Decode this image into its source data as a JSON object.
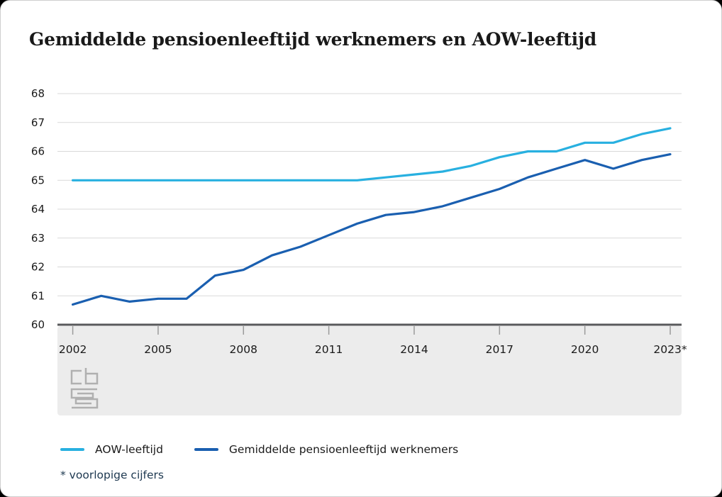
{
  "header": {
    "title": "Gemiddelde pensioenleeftijd werknemers en AOW-leeftijd",
    "menu_icon": "hamburger-menu-icon"
  },
  "chart_data": {
    "type": "line",
    "title": "Gemiddelde pensioenleeftijd werknemers en AOW-leeftijd",
    "xlabel": "",
    "ylabel": "",
    "x": [
      2002,
      2003,
      2004,
      2005,
      2006,
      2007,
      2008,
      2009,
      2010,
      2011,
      2012,
      2013,
      2014,
      2015,
      2016,
      2017,
      2018,
      2019,
      2020,
      2021,
      2022,
      2023
    ],
    "series": [
      {
        "name": "AOW-leeftijd",
        "color": "#28b0e0",
        "values": [
          65,
          65,
          65,
          65,
          65,
          65,
          65,
          65,
          65,
          65,
          65,
          65.1,
          65.2,
          65.3,
          65.5,
          65.8,
          66,
          66,
          66.3,
          66.3,
          66.6,
          66.8
        ]
      },
      {
        "name": "Gemiddelde pensioenleeftijd werknemers",
        "color": "#1a5fb0",
        "values": [
          60.7,
          61.0,
          60.8,
          60.9,
          60.9,
          61.7,
          61.9,
          62.4,
          62.7,
          63.1,
          63.5,
          63.8,
          63.9,
          64.1,
          64.4,
          64.7,
          65.1,
          65.4,
          65.7,
          65.4,
          65.7,
          65.9
        ]
      }
    ],
    "ylim": [
      60,
      68
    ],
    "y_ticks": [
      60,
      61,
      62,
      63,
      64,
      65,
      66,
      67,
      68
    ],
    "x_tick_years": [
      2002,
      2005,
      2008,
      2011,
      2014,
      2017,
      2020,
      2023
    ],
    "x_tick_labels": [
      "2002",
      "2005",
      "2008",
      "2011",
      "2014",
      "2017",
      "2020",
      "2023*"
    ],
    "grid": true,
    "legend_position": "bottom"
  },
  "footnote": "* voorlopige cijfers",
  "branding": {
    "logo": "cbs-logo"
  },
  "colors": {
    "band": "#ececec",
    "gridline": "#d9d9d9",
    "axis": "#58595b",
    "tick": "#9b9b9b",
    "text": "#1a1a1a",
    "title": "#191919",
    "footnote": "#1d3850",
    "menu": "#6e6e6e",
    "logo": "#b0b0b0"
  }
}
